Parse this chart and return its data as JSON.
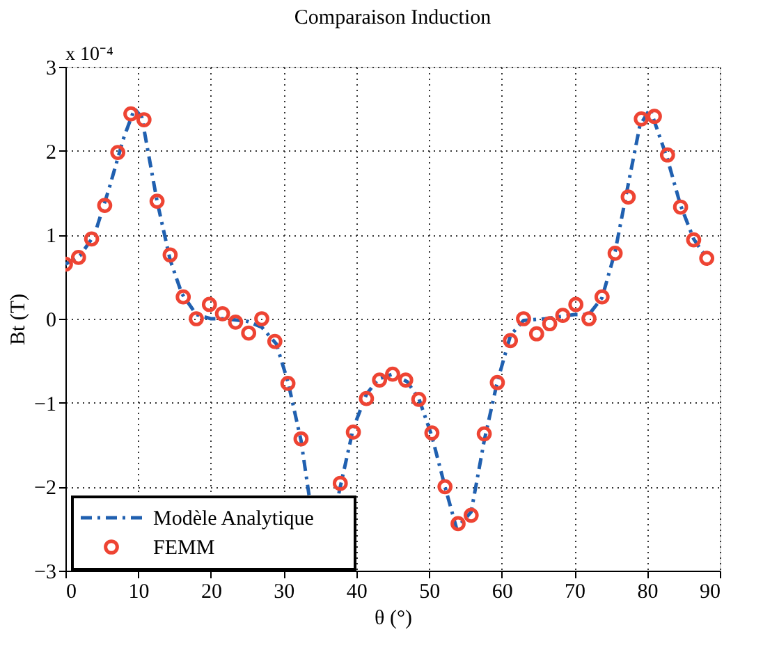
{
  "chart_data": {
    "type": "line",
    "title": "Comparaison Induction",
    "xlabel": "θ (°)",
    "ylabel": "Bt (T)",
    "annotations": [
      "x 10⁻⁴"
    ],
    "xlim": [
      0,
      90
    ],
    "xticks": [
      0,
      10,
      20,
      30,
      40,
      50,
      60,
      70,
      80,
      90
    ],
    "ylim": [
      -3,
      3
    ],
    "yticks": [
      -3,
      -2,
      -1,
      0,
      1,
      2,
      3
    ],
    "grid": true,
    "legend": "bottom left",
    "series": [
      {
        "name": "Modèle Analytique",
        "type": "line",
        "color": "#2060b0",
        "line_style": "dashed",
        "marker": "none",
        "x": [
          0,
          2,
          4,
          6,
          8,
          9.5,
          10.5,
          12.6,
          14.4,
          16,
          18,
          20,
          22,
          25,
          27,
          29,
          30.6,
          32.4,
          33.5,
          35,
          37.6,
          39.6,
          41.4,
          43,
          45,
          47,
          48.6,
          50.4,
          52.2,
          53.8,
          55.8,
          57.6,
          59.4,
          61.2,
          63,
          66,
          70,
          72,
          73.8,
          75.6,
          77.4,
          79,
          80.4,
          82.8,
          84.6,
          86.4,
          88.2
        ],
        "values": [
          0.65,
          0.75,
          1.0,
          1.55,
          2.15,
          2.5,
          2.4,
          1.4,
          0.7,
          0.3,
          0.05,
          0.0,
          0.0,
          -0.03,
          -0.1,
          -0.3,
          -0.75,
          -1.45,
          -2.1,
          null,
          -2.08,
          -1.3,
          -0.9,
          -0.72,
          -0.66,
          -0.75,
          -0.95,
          -1.4,
          -2.0,
          -2.5,
          -2.3,
          -1.45,
          -0.75,
          -0.2,
          -0.02,
          0.0,
          0.05,
          0.05,
          0.25,
          0.8,
          1.6,
          2.3,
          2.5,
          1.9,
          1.35,
          0.95,
          0.72
        ]
      },
      {
        "name": "FEMM",
        "type": "scatter",
        "color": "#ee4433",
        "marker": "circle",
        "x": [
          0,
          1.8,
          3.6,
          5.4,
          7.2,
          9,
          10.8,
          12.6,
          14.4,
          16.2,
          18,
          19.8,
          21.6,
          23.4,
          25.2,
          27,
          28.8,
          30.6,
          32.4,
          34.2,
          36,
          37.8,
          39.6,
          41.4,
          43.2,
          45,
          46.8,
          48.6,
          50.4,
          52.2,
          54,
          55.8,
          57.6,
          59.4,
          61.2,
          63,
          64.8,
          66.6,
          68.4,
          70.2,
          72,
          73.8,
          75.6,
          77.4,
          79.2,
          81,
          82.8,
          84.6,
          86.4,
          88.2
        ],
        "values": [
          0.65,
          0.73,
          0.95,
          1.35,
          1.98,
          2.44,
          2.37,
          1.4,
          0.76,
          0.26,
          0.0,
          0.17,
          0.06,
          -0.04,
          -0.17,
          0.0,
          -0.27,
          -0.77,
          -1.43,
          null,
          null,
          -1.96,
          -1.35,
          -0.95,
          -0.73,
          -0.66,
          -0.73,
          -0.96,
          -1.36,
          -2.0,
          -2.44,
          -2.34,
          -1.37,
          -0.76,
          -0.26,
          0.0,
          -0.18,
          -0.06,
          0.04,
          0.17,
          0.0,
          0.26,
          0.78,
          1.45,
          2.38,
          2.41,
          1.95,
          1.33,
          0.94,
          0.72
        ]
      }
    ]
  }
}
